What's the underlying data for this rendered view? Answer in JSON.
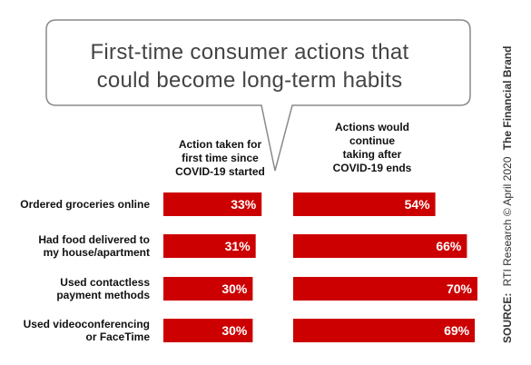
{
  "title_line1": "First-time consumer actions that",
  "title_line2": "could become long-term habits",
  "column_headers": {
    "first_time": [
      "Action taken for",
      "first time since",
      "COVID-19 started"
    ],
    "continue": [
      "Actions would",
      "continue",
      "taking after",
      "COVID-19 ends"
    ]
  },
  "source": {
    "label": "SOURCE:",
    "text": "RTI Research © April 2020",
    "brand": "The Financial Brand"
  },
  "colors": {
    "bar": "#cc0000",
    "text": "#111111",
    "bubble_stroke": "#888888"
  },
  "chart_data": {
    "type": "bar",
    "orientation": "horizontal",
    "categories": [
      [
        "Ordered groceries online"
      ],
      [
        "Had food delivered to",
        "my house/apartment"
      ],
      [
        "Used contactless",
        "payment methods"
      ],
      [
        "Used videoconferencing",
        "or FaceTime"
      ]
    ],
    "series": [
      {
        "values": [
          33,
          31,
          30,
          30
        ],
        "labels": [
          "33%",
          "31%",
          "30%",
          "30%"
        ]
      },
      {
        "values": [
          54,
          66,
          70,
          69
        ],
        "labels": [
          "54%",
          "66%",
          "70%",
          "69%"
        ]
      }
    ]
  }
}
